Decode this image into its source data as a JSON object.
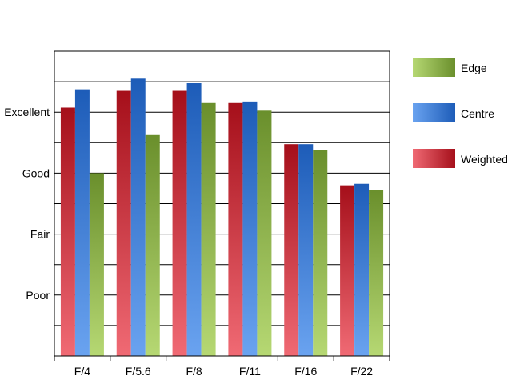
{
  "chart_data": {
    "type": "bar",
    "title": "",
    "xlabel": "",
    "ylabel": "",
    "categories": [
      "F/4",
      "F/5.6",
      "F/8",
      "F/11",
      "F/16",
      "F/22"
    ],
    "y_tick_labels": [
      "Poor",
      "Fair",
      "Good",
      "Excellent"
    ],
    "y_tick_values": [
      2,
      4,
      6,
      8
    ],
    "ylim": [
      0,
      10
    ],
    "grid": true,
    "legend_position": "right",
    "series": [
      {
        "name": "Weighted",
        "values": [
          8.15,
          8.7,
          8.7,
          8.3,
          6.95,
          5.6
        ],
        "color_dark": "#a50f1a",
        "color_light": "#f06a74"
      },
      {
        "name": "Centre",
        "values": [
          8.75,
          9.1,
          8.95,
          8.35,
          6.95,
          5.65
        ],
        "color_dark": "#1d5cb8",
        "color_light": "#6aa3f0"
      },
      {
        "name": "Edge",
        "values": [
          6.0,
          7.25,
          8.3,
          8.05,
          6.75,
          5.45
        ],
        "color_dark": "#6a8f2c",
        "color_light": "#b6d873"
      }
    ],
    "legend_order": [
      "Edge",
      "Centre",
      "Weighted"
    ]
  }
}
